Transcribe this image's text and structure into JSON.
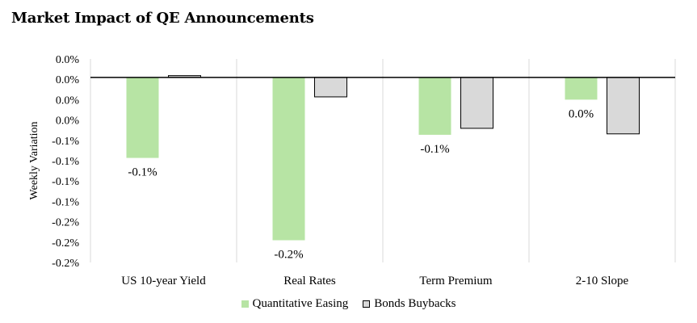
{
  "chart_data": {
    "type": "bar",
    "title": "Market Impact of QE Announcements",
    "ylabel": "Weekly Variation",
    "xlabel": "",
    "categories": [
      "US 10-year Yield",
      "Real Rates",
      "Term Premium",
      "2-10 Slope"
    ],
    "series": [
      {
        "name": "Quantitative Easing",
        "color": "#b7e4a4",
        "values": [
          -0.087,
          -0.176,
          -0.062,
          -0.024
        ]
      },
      {
        "name": "Bonds Buybacks",
        "color": "#d9d9d9",
        "values": [
          0.002,
          -0.021,
          -0.055,
          -0.061
        ]
      }
    ],
    "data_labels": [
      "-0.1%",
      "-0.2%",
      "-0.1%",
      "0.0%"
    ],
    "y_tick_labels": [
      "0.0%",
      "0.0%",
      "0.0%",
      "0.0%",
      "-0.1%",
      "-0.1%",
      "-0.1%",
      "-0.1%",
      "-0.2%",
      "-0.2%",
      "-0.2%"
    ],
    "ylim": [
      -0.2,
      0.02
    ],
    "grid": "vertical category separators",
    "legend_position": "bottom"
  }
}
